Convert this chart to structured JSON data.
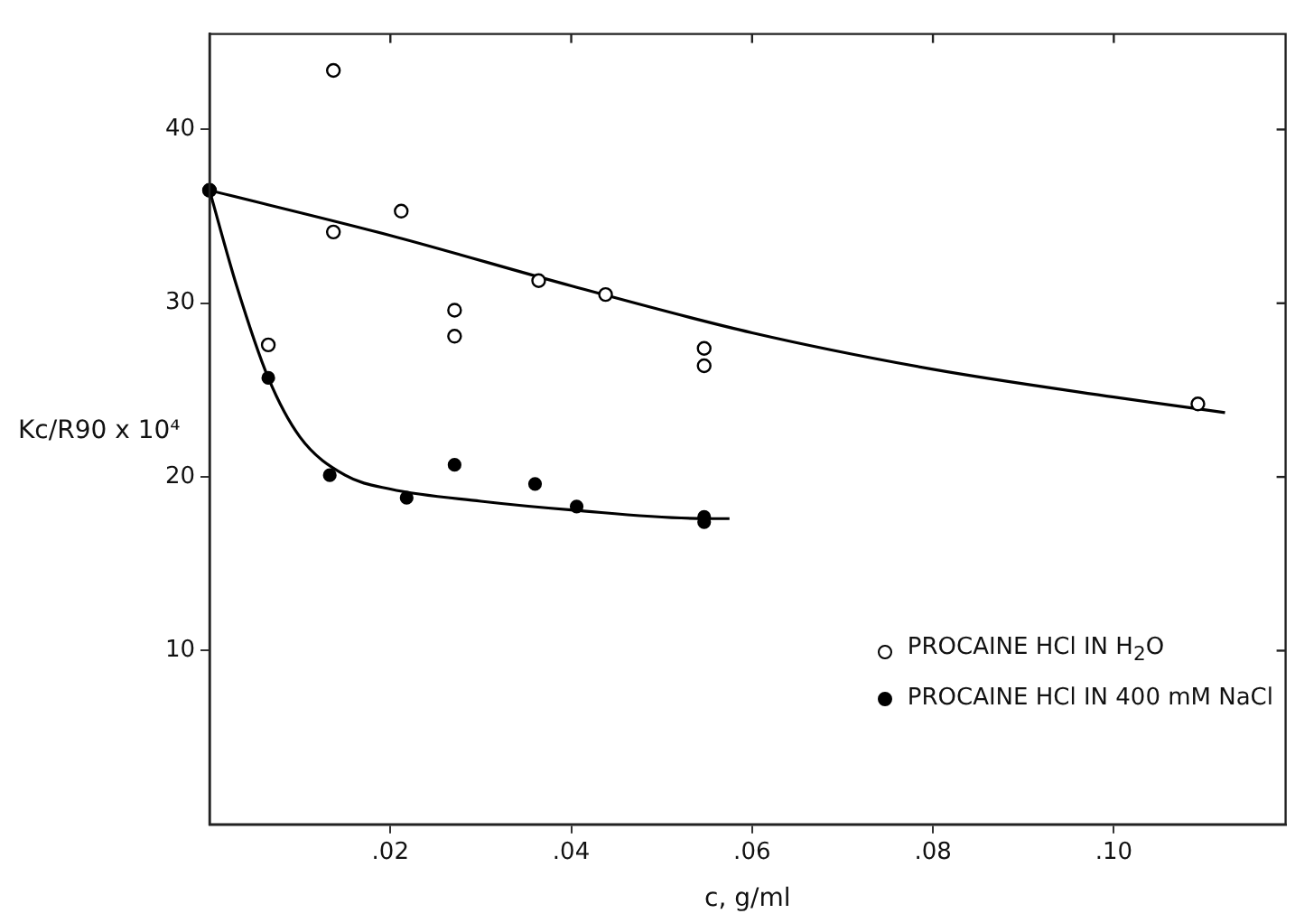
{
  "chart_data": {
    "type": "scatter",
    "xlabel": "c, g/ml",
    "ylabel": "Kc/R90 x 10⁴",
    "xlim": [
      0,
      0.119
    ],
    "ylim": [
      0,
      45.5
    ],
    "xticks": [
      {
        "value": 0.02,
        "label": ".02"
      },
      {
        "value": 0.04,
        "label": ".04"
      },
      {
        "value": 0.06,
        "label": ".06"
      },
      {
        "value": 0.08,
        "label": ".08"
      },
      {
        "value": 0.1,
        "label": ".10"
      }
    ],
    "yticks": [
      10,
      20,
      30,
      40
    ],
    "grid": false,
    "legend": "bottom right",
    "marker": "circle",
    "series": [
      {
        "name": "PROCAINE HCl IN H$_{2}$O",
        "color": "#000000",
        "x": [
          0,
          0.0065,
          0.0137,
          0.0137,
          0.0212,
          0.0271,
          0.0271,
          0.0364,
          0.0438,
          0.0547,
          0.0547,
          0.1093
        ],
        "values": [
          36.5,
          27.6,
          43.4,
          34.1,
          35.3,
          29.6,
          28.1,
          31.3,
          30.5,
          27.4,
          26.4,
          24.2
        ]
      },
      {
        "name": "PROCAINE HCl IN 400 mM NaCl",
        "color": "#000000",
        "x": [
          0,
          0.0065,
          0.0133,
          0.0218,
          0.0271,
          0.036,
          0.0406,
          0.0547,
          0.0547
        ],
        "values": [
          36.5,
          25.7,
          20.1,
          18.8,
          20.7,
          19.6,
          18.3,
          17.7,
          17.4
        ]
      },
      {
        "type": "line",
        "color": "#000000",
        "marker": "none",
        "x": [
          0,
          0.02,
          0.04,
          0.06,
          0.08,
          0.1,
          0.1123
        ],
        "values": [
          36.5,
          33.9,
          31.0,
          28.3,
          26.2,
          24.6,
          23.7
        ]
      },
      {
        "type": "line",
        "color": "#000000",
        "marker": "none",
        "x": [
          0,
          0.003,
          0.0065,
          0.01,
          0.015,
          0.02,
          0.03,
          0.04,
          0.055,
          0.0575
        ],
        "values": [
          36.5,
          31,
          25.7,
          22.3,
          20.1,
          19.3,
          18.6,
          18.1,
          17.6,
          17.6
        ]
      }
    ]
  }
}
